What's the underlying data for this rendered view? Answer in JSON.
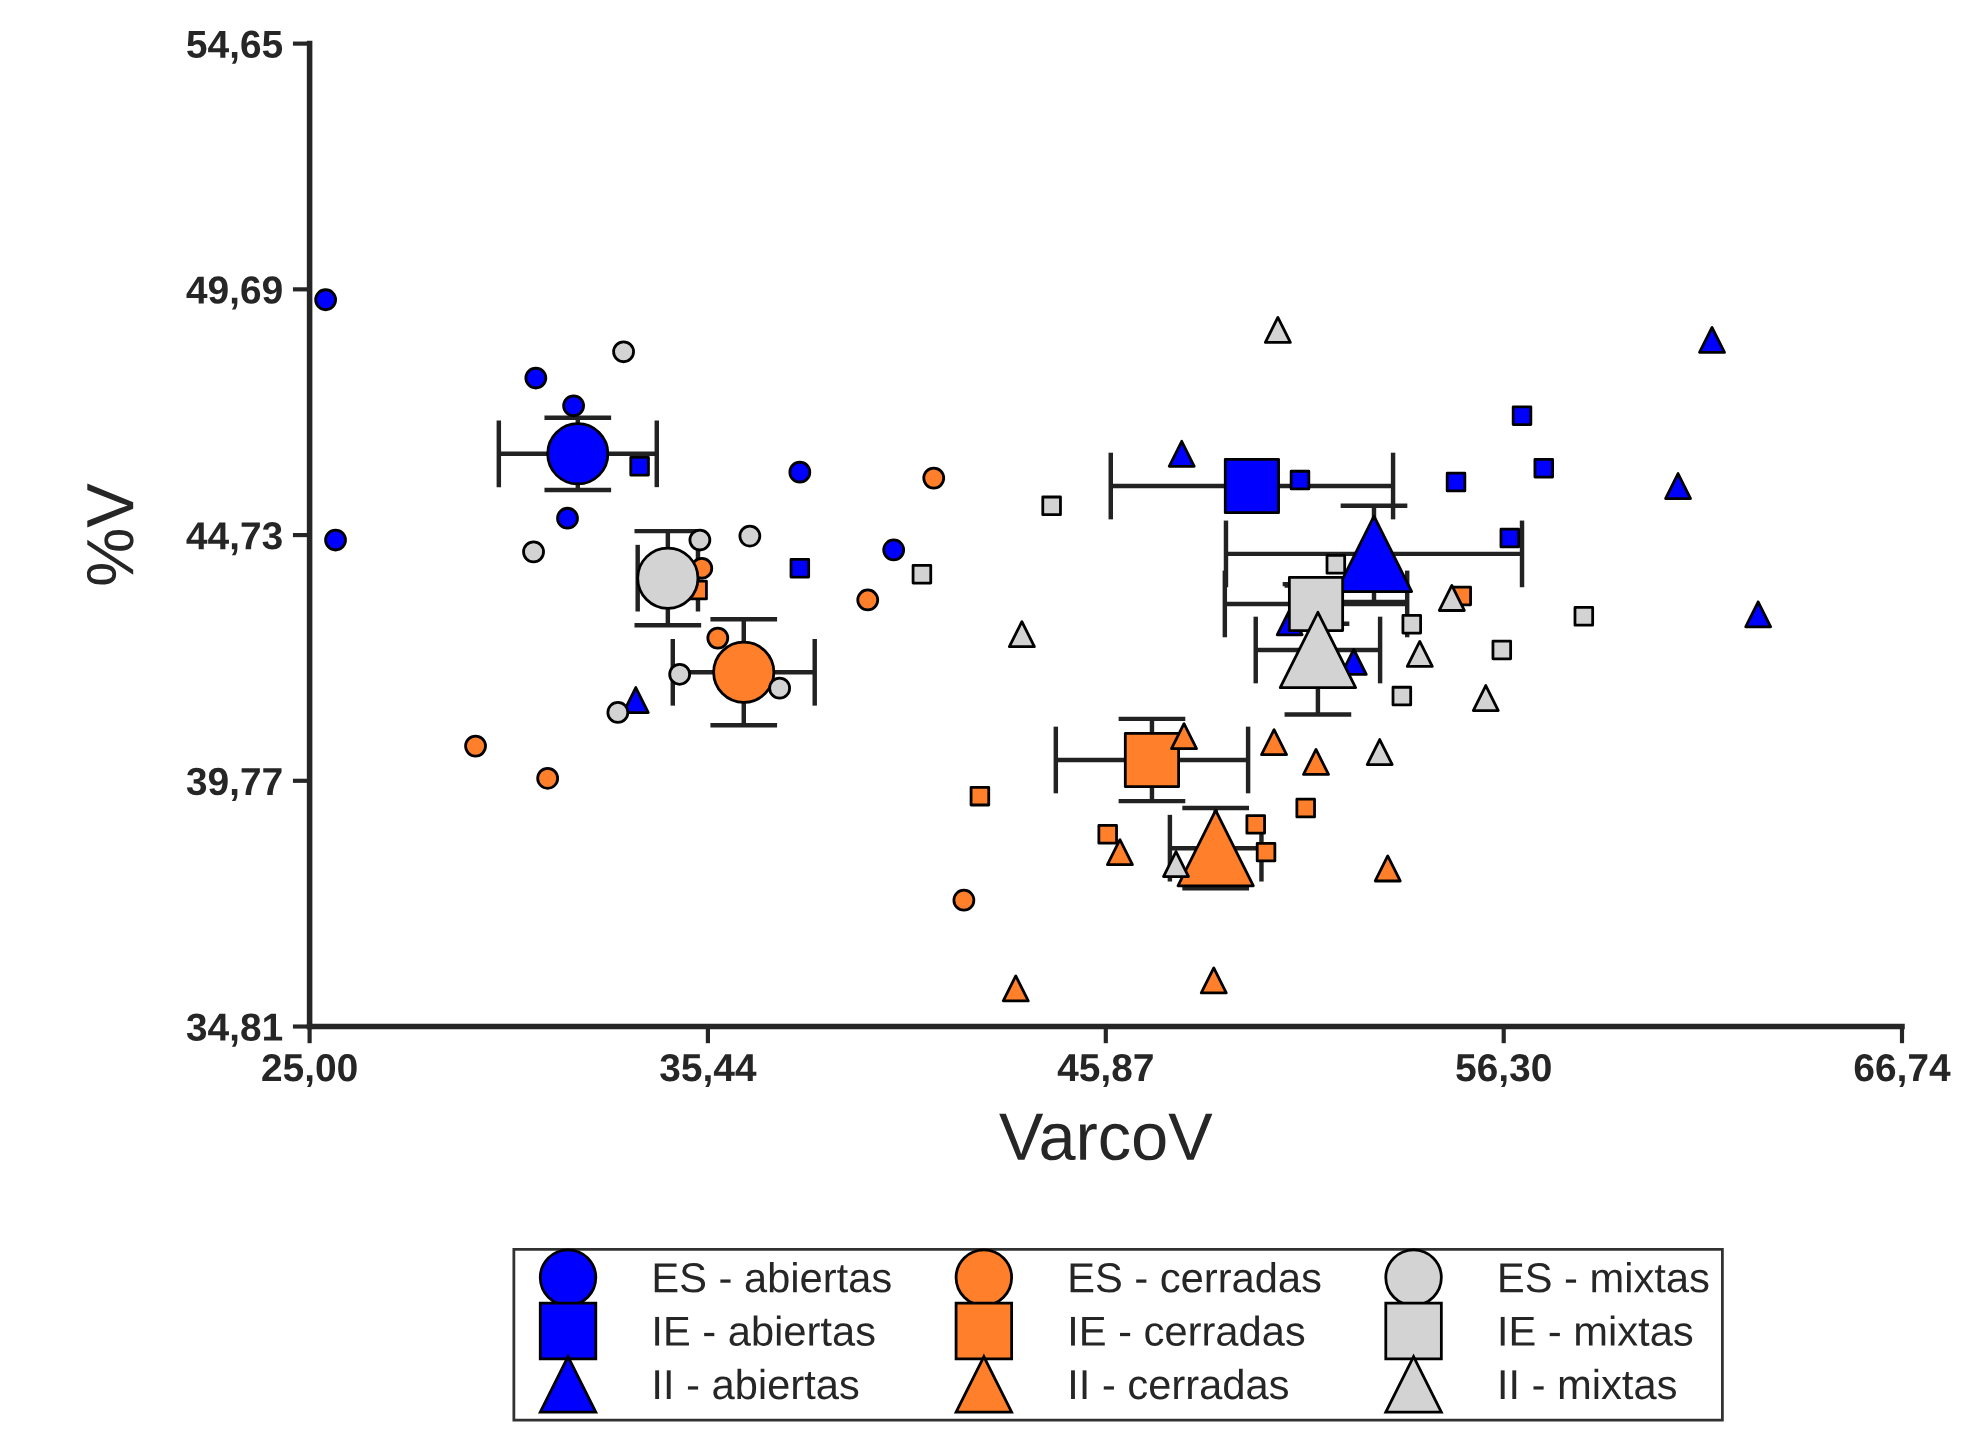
{
  "chart_data": {
    "type": "scatter",
    "xlabel": "VarcoV",
    "ylabel": "%V",
    "xlim": [
      25.0,
      66.74
    ],
    "ylim": [
      34.81,
      54.65
    ],
    "xticks": [
      {
        "value": 25.0,
        "label": "25,00"
      },
      {
        "value": 35.44,
        "label": "35,44"
      },
      {
        "value": 45.87,
        "label": "45,87"
      },
      {
        "value": 56.3,
        "label": "56,30"
      },
      {
        "value": 66.74,
        "label": "66,74"
      }
    ],
    "yticks": [
      {
        "value": 34.81,
        "label": "34,81"
      },
      {
        "value": 39.77,
        "label": "39,77"
      },
      {
        "value": 44.73,
        "label": "44,73"
      },
      {
        "value": 49.69,
        "label": "49,69"
      },
      {
        "value": 54.65,
        "label": "54,65"
      }
    ],
    "grid": false,
    "legend": "bottom",
    "series": [
      {
        "name": "ES - abiertas",
        "color": "#0000ff",
        "marker": "circle",
        "x": [
          32.03,
          25.42,
          30.93,
          31.92,
          31.76,
          25.68,
          37.85,
          40.31
        ],
        "values": [
          46.37,
          49.48,
          47.9,
          47.34,
          45.07,
          44.63,
          46.0,
          44.43
        ],
        "errors": [
          0.73,
          null,
          null,
          null,
          null,
          null,
          null,
          null
        ],
        "xerrors": [
          2.07,
          null,
          null,
          null,
          null,
          null,
          null,
          null
        ],
        "sizes": [
          1,
          0.11,
          0.11,
          0.11,
          0.11,
          0.11,
          0.11,
          0.11
        ]
      },
      {
        "name": "IE - abiertas",
        "color": "#0000ff",
        "marker": "square",
        "x": [
          49.7,
          33.65,
          37.85,
          50.96,
          55.05,
          56.78,
          57.35,
          56.46
        ],
        "values": [
          45.72,
          46.12,
          44.06,
          45.84,
          45.8,
          47.14,
          46.08,
          44.67
        ],
        "errors": [
          null,
          null,
          null,
          null,
          null,
          null,
          null,
          null
        ],
        "xerrors": [
          3.7,
          null,
          null,
          null,
          null,
          null,
          null,
          null
        ],
        "sizes": [
          1,
          0.11,
          0.11,
          0.11,
          0.11,
          0.11,
          0.11,
          0.11
        ]
      },
      {
        "name": "II - abiertas",
        "color": "#0000ff",
        "marker": "triangle",
        "x": [
          52.9,
          33.55,
          47.86,
          61.76,
          60.87,
          62.97,
          50.69,
          52.37
        ],
        "values": [
          44.35,
          41.4,
          46.37,
          48.67,
          45.72,
          43.13,
          42.97,
          42.17
        ],
        "errors": [
          0.97,
          null,
          null,
          null,
          null,
          null,
          null,
          null
        ],
        "xerrors": [
          3.88,
          null,
          null,
          null,
          null,
          null,
          null,
          null
        ],
        "sizes": [
          1,
          0.11,
          0.11,
          0.11,
          0.11,
          0.11,
          0.11,
          0.11
        ]
      },
      {
        "name": "ES - cerradas",
        "color": "#ff7f2a",
        "marker": "circle",
        "x": [
          36.38,
          41.36,
          35.28,
          35.7,
          39.63,
          29.35,
          31.24,
          42.15
        ],
        "values": [
          41.96,
          45.88,
          44.06,
          42.65,
          43.42,
          40.47,
          39.82,
          37.36
        ],
        "errors": [
          1.07,
          null,
          null,
          null,
          null,
          null,
          null,
          null
        ],
        "xerrors": [
          1.86,
          null,
          null,
          null,
          null,
          null,
          null,
          null
        ],
        "sizes": [
          1,
          0.11,
          0.11,
          0.11,
          0.11,
          0.11,
          0.11,
          0.11
        ]
      },
      {
        "name": "IE - cerradas",
        "color": "#ff7f2a",
        "marker": "square",
        "x": [
          47.08,
          35.17,
          42.57,
          45.92,
          49.8,
          50.07,
          51.11,
          55.2
        ],
        "values": [
          40.19,
          43.62,
          39.46,
          38.69,
          38.89,
          38.33,
          39.22,
          43.5
        ],
        "errors": [
          0.83,
          null,
          null,
          null,
          null,
          null,
          null,
          null
        ],
        "xerrors": [
          2.52,
          null,
          null,
          null,
          null,
          null,
          null,
          null
        ],
        "sizes": [
          1,
          0.11,
          0.11,
          0.11,
          0.11,
          0.11,
          0.11,
          0.11
        ]
      },
      {
        "name": "II - cerradas",
        "color": "#ff7f2a",
        "marker": "triangle",
        "x": [
          48.75,
          47.92,
          50.28,
          51.38,
          46.24,
          53.26,
          43.51,
          48.7
        ],
        "values": [
          38.41,
          40.67,
          40.55,
          40.15,
          38.33,
          38.0,
          35.58,
          35.74
        ],
        "errors": [
          0.81,
          null,
          null,
          null,
          null,
          null,
          null,
          null
        ],
        "xerrors": [
          1.2,
          null,
          null,
          null,
          null,
          null,
          null,
          null
        ],
        "sizes": [
          1,
          0.11,
          0.11,
          0.11,
          0.11,
          0.11,
          0.11,
          0.11
        ]
      },
      {
        "name": "ES - mixtas",
        "color": "#d3d3d3",
        "marker": "circle",
        "x": [
          34.39,
          33.23,
          30.87,
          35.23,
          36.54,
          34.7,
          37.32,
          33.08
        ],
        "values": [
          43.86,
          48.43,
          44.39,
          44.63,
          44.71,
          41.92,
          41.64,
          41.15
        ],
        "errors": [
          0.95,
          null,
          null,
          null,
          null,
          null,
          null,
          null
        ],
        "xerrors": [
          0.79,
          null,
          null,
          null,
          null,
          null,
          null,
          null
        ],
        "sizes": [
          1,
          0.11,
          0.11,
          0.11,
          0.11,
          0.11,
          0.11,
          0.11
        ]
      },
      {
        "name": "IE - mixtas",
        "color": "#d3d3d3",
        "marker": "square",
        "x": [
          51.38,
          41.05,
          44.45,
          51.9,
          53.89,
          56.25,
          53.63,
          58.4
        ],
        "values": [
          43.34,
          43.94,
          45.32,
          44.14,
          42.93,
          42.41,
          41.48,
          43.09
        ],
        "errors": [
          0.4,
          null,
          null,
          null,
          null,
          null,
          null,
          null
        ],
        "xerrors": [
          2.39,
          null,
          null,
          null,
          null,
          null,
          null,
          null
        ],
        "sizes": [
          1,
          0.11,
          0.11,
          0.11,
          0.11,
          0.11,
          0.11,
          0.11
        ]
      },
      {
        "name": "II - mixtas",
        "color": "#d3d3d3",
        "marker": "triangle",
        "x": [
          51.43,
          50.38,
          43.67,
          54.94,
          54.1,
          55.83,
          53.05,
          47.71
        ],
        "values": [
          42.41,
          48.87,
          42.73,
          43.46,
          42.33,
          41.44,
          40.35,
          38.09
        ],
        "errors": [
          1.3,
          null,
          null,
          null,
          null,
          null,
          null,
          null
        ],
        "xerrors": [
          1.63,
          null,
          null,
          null,
          null,
          null,
          null,
          null
        ],
        "sizes": [
          1,
          0.11,
          0.11,
          0.11,
          0.11,
          0.11,
          0.11,
          0.11
        ]
      }
    ]
  }
}
